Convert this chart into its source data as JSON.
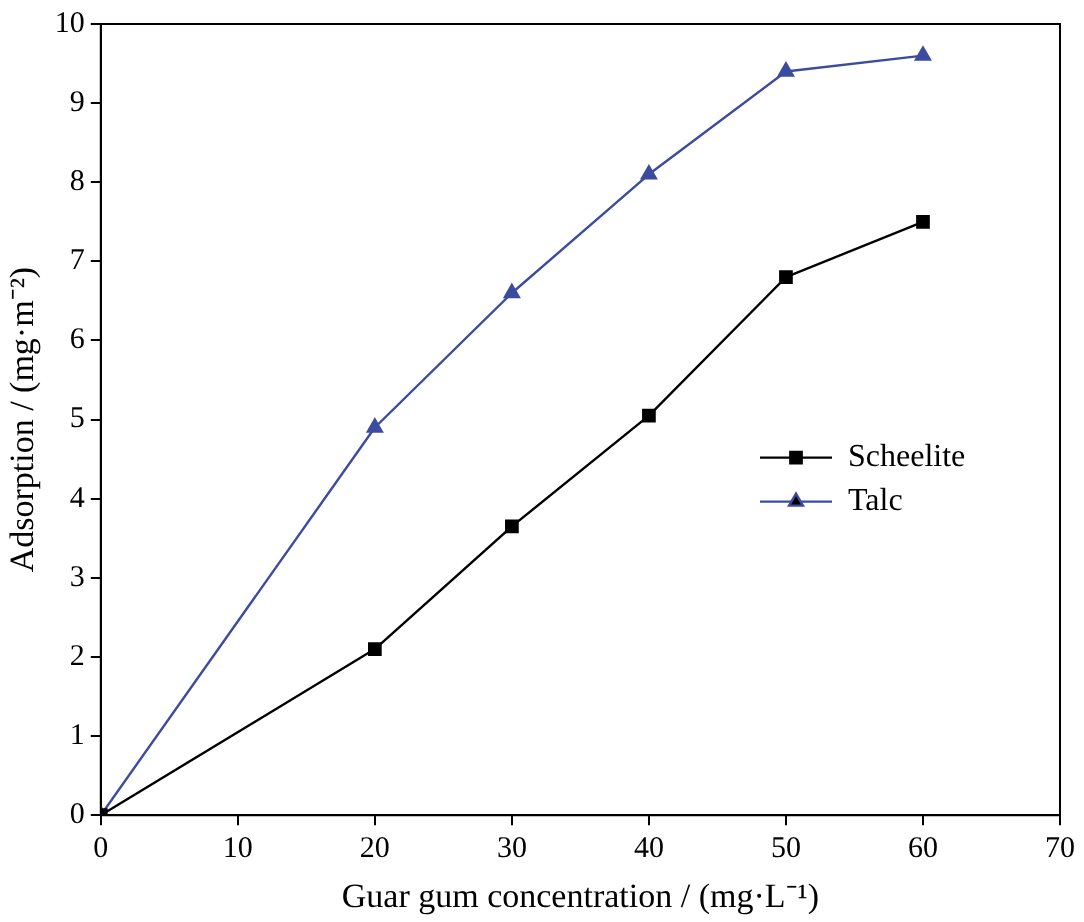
{
  "chart_data": {
    "type": "line",
    "xlabel": "Guar gum concentration / (mg·L⁻¹)",
    "ylabel": "Adsorption / (mg·m⁻²)",
    "x": [
      0,
      20,
      30,
      40,
      50,
      60
    ],
    "series": [
      {
        "name": "Scheelite",
        "color": "#000000",
        "marker": "square",
        "values": [
          0,
          2.1,
          3.65,
          5.05,
          6.8,
          7.5
        ]
      },
      {
        "name": "Talc",
        "color": "#3b4ba0",
        "marker": "triangle",
        "values": [
          0,
          4.9,
          6.6,
          8.1,
          9.4,
          9.6
        ]
      }
    ],
    "xlim": [
      0,
      70
    ],
    "xticks": [
      0,
      10,
      20,
      30,
      40,
      50,
      60,
      70
    ],
    "ylim": [
      0,
      10
    ],
    "yticks": [
      0,
      1,
      2,
      3,
      4,
      5,
      6,
      7,
      8,
      9,
      10
    ],
    "grid": false,
    "legend": "right",
    "line_style": "solid"
  }
}
